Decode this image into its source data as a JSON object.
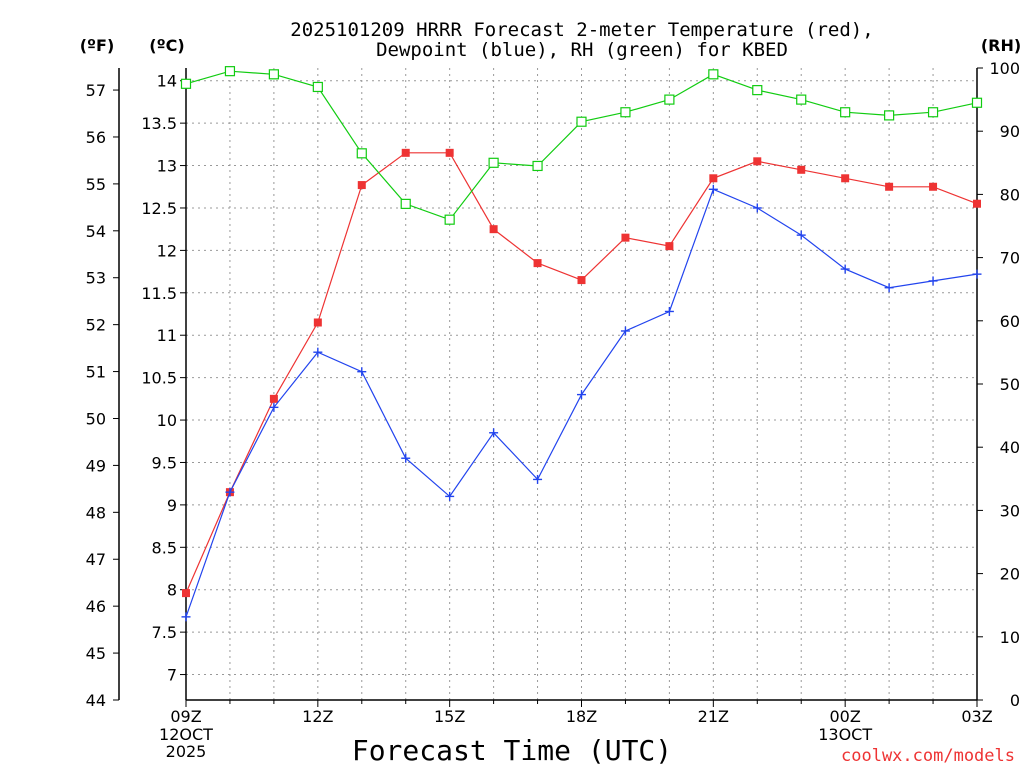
{
  "chart_data": {
    "type": "line",
    "title_line1": "2025101209 HRRR Forecast 2-meter Temperature (red),",
    "title_line2": "Dewpoint (blue), RH (green) for KBED",
    "xlabel": "Forecast Time (UTC)",
    "left_outer_unit": "(ºF)",
    "left_inner_unit": "(ºC)",
    "right_unit": "(RH)",
    "credit": "coolwx.com/models",
    "x_tick_labels": [
      "09Z",
      "12Z",
      "15Z",
      "18Z",
      "21Z",
      "00Z",
      "03Z"
    ],
    "x_tick_hours": [
      0,
      3,
      6,
      9,
      12,
      15,
      18
    ],
    "x_date_labels": [
      {
        "hour": 0,
        "lines": [
          "12OCT",
          "2025"
        ]
      },
      {
        "hour": 15,
        "lines": [
          "13OCT"
        ]
      }
    ],
    "xlim": [
      0,
      18
    ],
    "ylim_c": [
      6.7,
      14.15
    ],
    "ylim_f": [
      44,
      57.47
    ],
    "ylim_rh": [
      0,
      100
    ],
    "c_ticks": [
      "7",
      "7.5",
      "8",
      "8.5",
      "9",
      "9.5",
      "10",
      "10.5",
      "11",
      "11.5",
      "12",
      "12.5",
      "13",
      "13.5",
      "14"
    ],
    "f_ticks": [
      "44",
      "45",
      "46",
      "47",
      "48",
      "49",
      "50",
      "51",
      "52",
      "53",
      "54",
      "55",
      "56",
      "57"
    ],
    "rh_ticks": [
      "0",
      "10",
      "20",
      "30",
      "40",
      "50",
      "60",
      "70",
      "80",
      "90",
      "100"
    ],
    "colors": {
      "temperature": "#ee3333",
      "dewpoint": "#2244ee",
      "rh": "#11cc11",
      "grid": "#999999",
      "credit": "#ee3333"
    },
    "series": [
      {
        "name": "Temperature",
        "unit": "C",
        "marker": "filled-square",
        "x": [
          0,
          1,
          2,
          3,
          4,
          5,
          6,
          7,
          8,
          9,
          10,
          11,
          12,
          13,
          14,
          15,
          16,
          17,
          18
        ],
        "values": [
          7.96,
          9.15,
          10.25,
          11.15,
          12.77,
          13.15,
          13.15,
          12.25,
          11.85,
          11.65,
          12.15,
          12.05,
          12.85,
          13.05,
          12.95,
          12.85,
          12.75,
          12.75,
          12.55
        ]
      },
      {
        "name": "Dewpoint",
        "unit": "C",
        "marker": "plus",
        "x": [
          0,
          1,
          2,
          3,
          4,
          5,
          6,
          7,
          8,
          9,
          10,
          11,
          12,
          13,
          14,
          15,
          16,
          17,
          18
        ],
        "values": [
          7.68,
          9.15,
          10.15,
          10.8,
          10.57,
          9.55,
          9.1,
          9.85,
          9.3,
          10.3,
          11.05,
          11.28,
          12.72,
          12.5,
          12.18,
          11.78,
          11.56,
          11.64,
          11.72
        ]
      },
      {
        "name": "RH",
        "unit": "%",
        "marker": "open-square",
        "x": [
          0,
          1,
          2,
          3,
          4,
          5,
          6,
          7,
          8,
          9,
          10,
          11,
          12,
          13,
          14,
          15,
          16,
          17,
          18
        ],
        "values": [
          97.5,
          99.5,
          99,
          97,
          86.5,
          78.5,
          76,
          85,
          84.5,
          91.5,
          93,
          95,
          99,
          96.5,
          95,
          93,
          92.5,
          93,
          94.5
        ]
      }
    ]
  }
}
